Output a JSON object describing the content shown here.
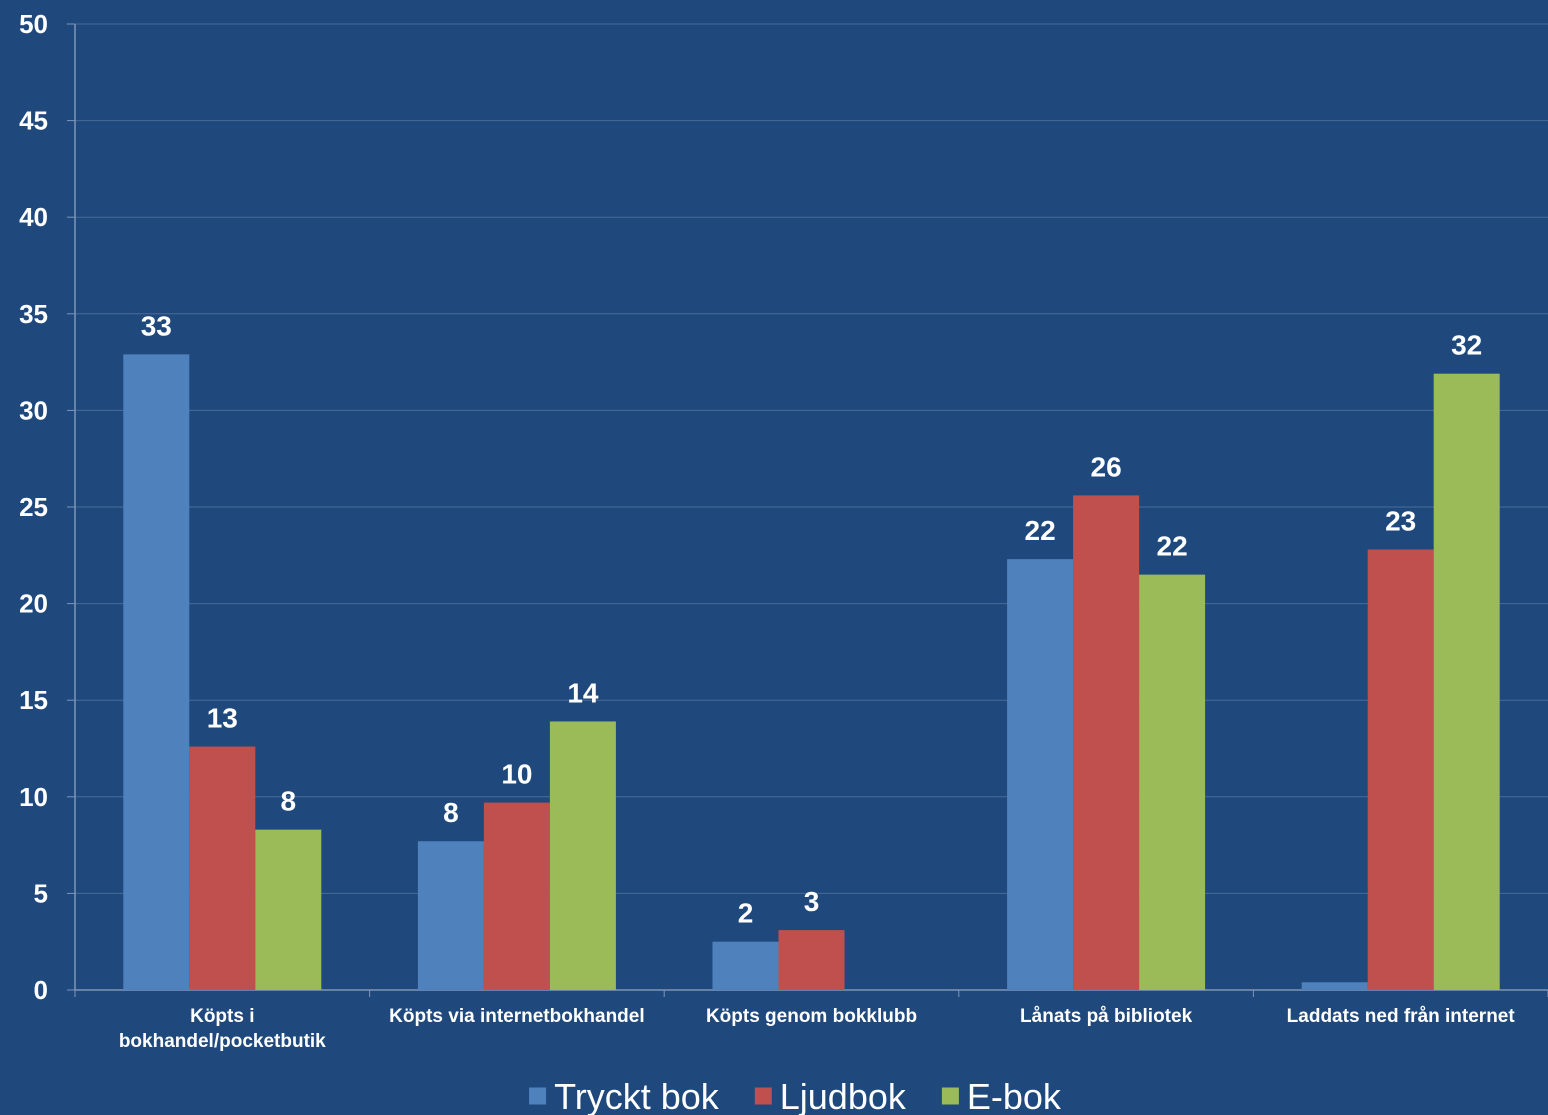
{
  "chart_data": {
    "type": "bar",
    "title": "",
    "xlabel": "",
    "ylabel": "",
    "ylim": [
      0,
      50
    ],
    "yticks": [
      0,
      5,
      10,
      15,
      20,
      25,
      30,
      35,
      40,
      45,
      50
    ],
    "grid": true,
    "legend_position": "bottom",
    "categories": [
      [
        "Köpts i",
        "bokhandel/pocketbutik"
      ],
      [
        "Köpts via internetbokhandel"
      ],
      [
        "Köpts genom bokklubb"
      ],
      [
        "Lånats på bibliotek"
      ],
      [
        "Laddats ned från internet"
      ]
    ],
    "series": [
      {
        "name": "Tryckt bok",
        "color": "#4f81bd",
        "values": [
          32.9,
          7.7,
          2.5,
          22.3,
          0.4
        ],
        "labels": [
          "33",
          "8",
          "2",
          "22",
          ""
        ]
      },
      {
        "name": "Ljudbok",
        "color": "#c0504d",
        "values": [
          12.6,
          9.7,
          3.1,
          25.6,
          22.8
        ],
        "labels": [
          "13",
          "10",
          "3",
          "26",
          "23"
        ]
      },
      {
        "name": "E-bok",
        "color": "#9bbb59",
        "values": [
          8.3,
          13.9,
          0,
          21.5,
          31.9
        ],
        "labels": [
          "8",
          "14",
          "",
          "22",
          "32"
        ]
      }
    ]
  },
  "colors": {
    "background": "#1f497d",
    "gridline": "#4a6b99",
    "axis": "#7f95b8",
    "text": "#ffffff"
  }
}
